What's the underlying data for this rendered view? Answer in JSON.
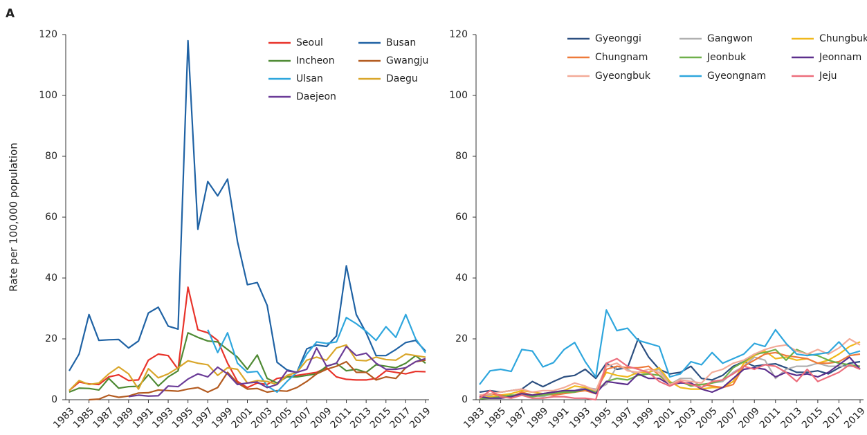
{
  "chart_data": [
    {
      "type": "line",
      "panel_label": "A",
      "ylabel": "Rate per 100,000 population",
      "x": [
        1983,
        1984,
        1985,
        1986,
        1987,
        1988,
        1989,
        1990,
        1991,
        1992,
        1993,
        1994,
        1995,
        1996,
        1997,
        1998,
        1999,
        2000,
        2001,
        2002,
        2003,
        2004,
        2005,
        2006,
        2007,
        2008,
        2009,
        2010,
        2011,
        2012,
        2013,
        2014,
        2015,
        2016,
        2017,
        2018,
        2019
      ],
      "xlim": [
        1983,
        2019
      ],
      "xticks": [
        1983,
        1985,
        1987,
        1989,
        1991,
        1993,
        1995,
        1997,
        1999,
        2001,
        2003,
        2005,
        2007,
        2009,
        2011,
        2013,
        2015,
        2017,
        2019
      ],
      "ylim": [
        0,
        120
      ],
      "yticks": [
        0,
        20,
        40,
        60,
        80,
        100,
        120
      ],
      "legend_columns": 2,
      "series": [
        {
          "name": "Seoul",
          "color": "#e8332a",
          "values": [
            3,
            5.8,
            5.2,
            5,
            7.5,
            8.2,
            6.3,
            6.5,
            13,
            15,
            14.5,
            10,
            37,
            23,
            22,
            19.5,
            12,
            6,
            4,
            5.5,
            5,
            7,
            7.5,
            8,
            8.5,
            9,
            10.5,
            7.5,
            6.7,
            6.5,
            6.5,
            7,
            9.5,
            9,
            8.5,
            9.3,
            9.2
          ]
        },
        {
          "name": "Busan",
          "color": "#1f62a4",
          "values": [
            9.5,
            15,
            28,
            19.5,
            19.7,
            19.8,
            17,
            19.3,
            28.5,
            30.4,
            24.2,
            23.2,
            118,
            56,
            71.7,
            67,
            72.5,
            52,
            37.8,
            38.5,
            31,
            12.3,
            9.8,
            9,
            16.7,
            18,
            17.5,
            21,
            44,
            28,
            22,
            14.5,
            14.5,
            16.5,
            18.8,
            19.5,
            16
          ]
        },
        {
          "name": "Incheon",
          "color": "#4f8a34",
          "values": [
            2.5,
            3.8,
            3.7,
            3.2,
            7,
            3.8,
            4.3,
            4.4,
            8.2,
            4.5,
            7.5,
            9.5,
            22,
            20.5,
            19.3,
            19,
            16.5,
            14,
            10,
            14.7,
            7,
            5.5,
            7.5,
            7.5,
            8,
            8.5,
            11,
            12,
            9.5,
            10,
            9,
            11.5,
            11,
            10.5,
            12,
            14.5,
            12
          ]
        },
        {
          "name": "Gwangju",
          "color": "#b35a1f",
          "values": [
            null,
            null,
            0,
            0.2,
            1.5,
            0.8,
            1.2,
            2.2,
            2.3,
            3.2,
            3,
            2.8,
            3.5,
            4,
            2.5,
            4,
            9,
            5.5,
            3.5,
            3.7,
            2.5,
            3,
            2.8,
            4,
            6,
            8.5,
            10,
            11,
            12.5,
            9,
            9,
            6.5,
            7.5,
            7,
            10.5,
            12.5,
            13
          ]
        },
        {
          "name": "Ulsan",
          "color": "#2ea6dd",
          "values": [
            null,
            null,
            null,
            null,
            null,
            null,
            null,
            null,
            null,
            null,
            null,
            null,
            null,
            null,
            23,
            15.5,
            22,
            12,
            9,
            9.3,
            4.5,
            2.5,
            6,
            9,
            15,
            19,
            18.5,
            19,
            27,
            25,
            22.5,
            19.5,
            24,
            20.5,
            28,
            20,
            15.5
          ]
        },
        {
          "name": "Daegu",
          "color": "#d9a62a",
          "values": [
            3,
            6.3,
            5,
            5.5,
            8.5,
            10.8,
            8.5,
            3.5,
            10.2,
            7.2,
            8.5,
            10.5,
            12.8,
            12,
            11.5,
            8,
            10.5,
            10,
            5.5,
            6.3,
            6,
            5,
            8,
            9,
            13,
            14,
            13,
            17,
            18,
            13,
            12.8,
            14,
            13.2,
            13,
            15,
            14.5,
            14
          ]
        },
        {
          "name": "Daejeon",
          "color": "#6b3c98",
          "values": [
            null,
            null,
            null,
            null,
            null,
            null,
            1,
            1.5,
            1.2,
            1.3,
            4.5,
            4.3,
            6.8,
            8.5,
            7.5,
            10.7,
            8.5,
            5,
            5.5,
            5.8,
            4,
            5,
            9.5,
            9,
            10,
            17,
            11,
            12,
            17.5,
            14.5,
            15.3,
            12,
            10,
            10,
            10.5,
            12.5,
            13.5
          ]
        }
      ]
    },
    {
      "type": "line",
      "x": [
        1983,
        1984,
        1985,
        1986,
        1987,
        1988,
        1989,
        1990,
        1991,
        1992,
        1993,
        1994,
        1995,
        1996,
        1997,
        1998,
        1999,
        2000,
        2001,
        2002,
        2003,
        2004,
        2005,
        2006,
        2007,
        2008,
        2009,
        2010,
        2011,
        2012,
        2013,
        2014,
        2015,
        2016,
        2017,
        2018,
        2019
      ],
      "xlim": [
        1983,
        2019
      ],
      "xticks": [
        1983,
        1985,
        1987,
        1989,
        1991,
        1993,
        1995,
        1997,
        1999,
        2001,
        2003,
        2005,
        2007,
        2009,
        2011,
        2013,
        2015,
        2017,
        2019
      ],
      "ylim": [
        0,
        120
      ],
      "yticks": [
        0,
        20,
        40,
        60,
        80,
        100,
        120
      ],
      "legend_columns": 3,
      "series": [
        {
          "name": "Gyeonggi",
          "color": "#2c4f80",
          "values": [
            2.5,
            3,
            2.5,
            3,
            3.5,
            6,
            4.3,
            6,
            7.5,
            8,
            10,
            7,
            12,
            10,
            10.5,
            20,
            14,
            10,
            8.5,
            9,
            11,
            7,
            6.5,
            8,
            11,
            12.5,
            11,
            11.5,
            11.8,
            10.5,
            9,
            9,
            9.5,
            8.5,
            10.5,
            12,
            12.5
          ]
        },
        {
          "name": "Gangwon",
          "color": "#b0b0b0",
          "values": [
            1,
            1.5,
            0.5,
            1,
            2,
            1.5,
            1,
            2,
            2.5,
            3,
            4,
            3.5,
            5,
            11,
            10,
            8,
            9,
            10,
            5,
            7,
            7,
            4,
            5.5,
            6,
            9,
            11,
            14,
            13,
            7,
            10,
            11,
            11,
            12,
            11,
            11,
            11,
            11
          ]
        },
        {
          "name": "Chungbuk",
          "color": "#f0b81c",
          "values": [
            0.5,
            1,
            1.5,
            2,
            3,
            2.5,
            2,
            2.5,
            3,
            4.5,
            4,
            3,
            9,
            8,
            7.5,
            9,
            9,
            10.5,
            6,
            4,
            3.5,
            3.5,
            4,
            4,
            6,
            12,
            14.5,
            16,
            13.5,
            14,
            13,
            13.5,
            12,
            13,
            15,
            17.5,
            19
          ]
        },
        {
          "name": "Chungnam",
          "color": "#ee7a3a",
          "values": [
            1,
            2,
            1.5,
            1,
            2.5,
            1.5,
            2,
            1.5,
            2,
            2.5,
            3,
            2,
            10,
            11,
            10.5,
            10.5,
            11,
            8,
            5,
            6,
            5,
            5,
            4.5,
            4,
            5,
            11,
            13,
            15,
            15.5,
            14.5,
            14,
            13.5,
            12,
            12,
            12.5,
            14.5,
            15
          ]
        },
        {
          "name": "Jeonbuk",
          "color": "#6fb04a",
          "values": [
            0.3,
            0.5,
            1,
            1.5,
            1.5,
            1,
            1.5,
            2,
            2.5,
            2.5,
            3.5,
            2.5,
            6,
            7,
            6.5,
            8,
            8.5,
            8,
            5.5,
            6,
            4.5,
            5,
            5.5,
            6.5,
            10.5,
            12.5,
            15,
            15.5,
            16.5,
            13,
            16.5,
            15,
            14.5,
            13,
            12,
            11.5,
            11
          ]
        },
        {
          "name": "Jeonnam",
          "color": "#5c2f8c",
          "values": [
            1,
            0.5,
            0.5,
            1,
            2,
            1.5,
            2,
            2.5,
            3,
            3,
            3.5,
            2,
            6,
            5.5,
            5,
            8.5,
            7,
            7,
            5,
            5.5,
            5.5,
            3.5,
            2.5,
            4,
            7,
            10,
            10.5,
            10,
            7.5,
            9,
            8,
            8.5,
            7.5,
            9,
            11.5,
            14,
            10
          ]
        },
        {
          "name": "Gyeongbuk",
          "color": "#f3aa98",
          "values": [
            1.5,
            2,
            2.5,
            3,
            3.5,
            2.5,
            3,
            3,
            4,
            5.5,
            4.5,
            3,
            11,
            12,
            9.5,
            9,
            10,
            9,
            5,
            6.5,
            6,
            5.5,
            9,
            10,
            12,
            13,
            15,
            16.5,
            17.5,
            18,
            16,
            15,
            16.5,
            15,
            17,
            20,
            18
          ]
        },
        {
          "name": "Gyeongnam",
          "color": "#2ea6dd",
          "values": [
            5,
            9.5,
            10,
            9.3,
            16.5,
            16,
            10.8,
            12.2,
            16.5,
            18.8,
            12.5,
            7.5,
            29.5,
            22.7,
            23.5,
            19.5,
            18.5,
            17.5,
            7.5,
            8.5,
            12.5,
            11.5,
            15.5,
            12,
            13.5,
            15,
            18.5,
            17.5,
            23,
            18.5,
            15,
            14.5,
            15,
            15.5,
            19,
            15,
            16
          ]
        },
        {
          "name": "Jeju",
          "color": "#ec6d7c",
          "values": [
            0.5,
            3,
            1,
            0.5,
            1.5,
            0.5,
            0.5,
            1,
            1,
            0.5,
            0.5,
            0,
            12,
            13.5,
            11,
            10,
            9,
            6,
            4.5,
            6,
            5,
            4,
            6,
            6.5,
            8.5,
            11,
            10,
            11.5,
            11,
            9,
            6,
            10,
            6,
            7.5,
            9,
            11.5,
            10
          ]
        }
      ]
    }
  ]
}
